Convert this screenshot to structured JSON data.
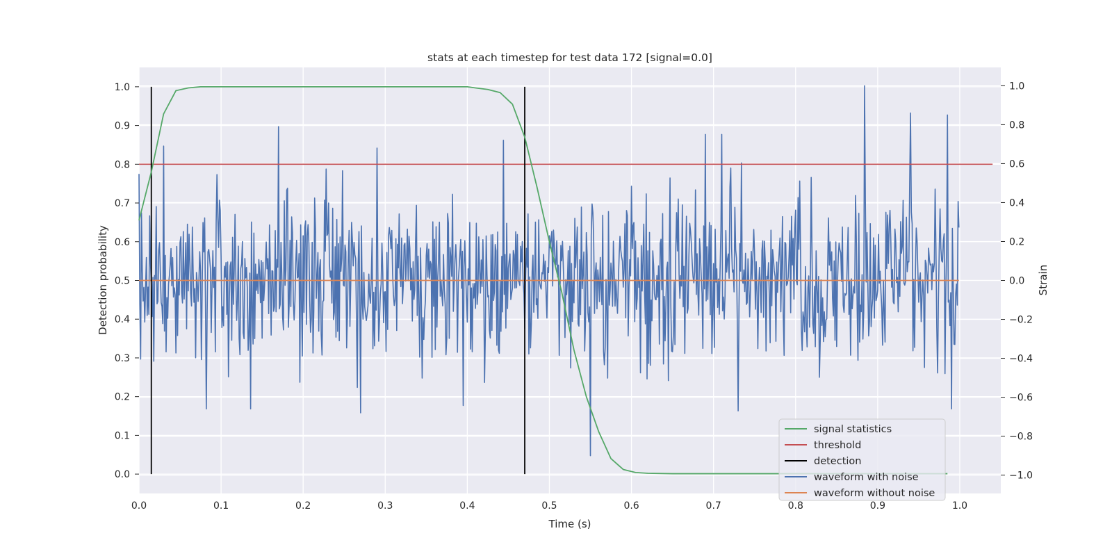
{
  "chart_data": {
    "type": "line",
    "title": "stats at each timestep for test data 172 [signal=0.0]",
    "xlabel": "Time (s)",
    "ylabel": "Detection probability",
    "ylabel_right": "Strain",
    "xlim": [
      0.0,
      1.05
    ],
    "ylim": [
      -0.05,
      1.05
    ],
    "ylim_right": [
      -1.0,
      1.0
    ],
    "x_ticks": [
      "0.0",
      "0.1",
      "0.2",
      "0.3",
      "0.4",
      "0.5",
      "0.6",
      "0.7",
      "0.8",
      "0.9",
      "1.0"
    ],
    "y_ticks": [
      "0.0",
      "0.1",
      "0.2",
      "0.3",
      "0.4",
      "0.5",
      "0.6",
      "0.7",
      "0.8",
      "0.9",
      "1.0"
    ],
    "y_ticks_right": [
      "−1.0",
      "−0.8",
      "−0.6",
      "−0.4",
      "−0.2",
      "0.0",
      "0.2",
      "0.4",
      "0.6",
      "0.8",
      "1.0"
    ],
    "grid": true,
    "legend_position": "lower-right",
    "series": [
      {
        "name": "signal statistics",
        "axis": "left",
        "color": "#55a868",
        "x": [
          0.0,
          0.015,
          0.03,
          0.045,
          0.06,
          0.075,
          0.1,
          0.2,
          0.3,
          0.4,
          0.41,
          0.425,
          0.44,
          0.455,
          0.47,
          0.485,
          0.5,
          0.515,
          0.53,
          0.545,
          0.56,
          0.575,
          0.59,
          0.605,
          0.62,
          0.65,
          0.7,
          0.8,
          0.9,
          0.985
        ],
        "y": [
          0.655,
          0.78,
          0.93,
          0.99,
          0.997,
          1.0,
          1.0,
          1.0,
          1.0,
          1.0,
          0.997,
          0.993,
          0.985,
          0.955,
          0.87,
          0.74,
          0.6,
          0.47,
          0.32,
          0.2,
          0.11,
          0.04,
          0.012,
          0.004,
          0.002,
          0.001,
          0.001,
          0.001,
          0.001,
          0.001
        ]
      },
      {
        "name": "threshold",
        "axis": "left",
        "color": "#c44e52",
        "x": [
          0.0,
          1.04
        ],
        "y": [
          0.8,
          0.8
        ]
      },
      {
        "name": "detection",
        "axis": "left",
        "color": "#000000",
        "type": "vlines",
        "x": [
          0.015,
          0.47
        ],
        "y_range": [
          0.0,
          1.0
        ]
      },
      {
        "name": "waveform with noise",
        "axis": "right",
        "color": "#4c72b0",
        "noise": {
          "points": 1000,
          "x_start": 0.0,
          "x_end": 0.999,
          "amplitude": 0.22,
          "seed": 172
        },
        "peaks": [
          {
            "x": 0.03,
            "y": 0.69
          },
          {
            "x": 0.082,
            "y": -0.66
          },
          {
            "x": 0.136,
            "y": -0.66
          },
          {
            "x": 0.17,
            "y": 0.79
          },
          {
            "x": 0.29,
            "y": 0.68
          },
          {
            "x": 0.27,
            "y": -0.68
          },
          {
            "x": 0.444,
            "y": 0.72
          },
          {
            "x": 0.55,
            "y": -0.9
          },
          {
            "x": 0.69,
            "y": 0.75
          },
          {
            "x": 0.71,
            "y": 0.75
          },
          {
            "x": 0.73,
            "y": -0.67
          },
          {
            "x": 0.884,
            "y": 1.0
          },
          {
            "x": 0.94,
            "y": 0.86
          },
          {
            "x": 0.985,
            "y": 0.85
          }
        ]
      },
      {
        "name": "waveform without noise",
        "axis": "right",
        "color": "#dd8452",
        "x": [
          0.0,
          0.999
        ],
        "y": [
          0.0,
          0.0
        ]
      }
    ]
  }
}
